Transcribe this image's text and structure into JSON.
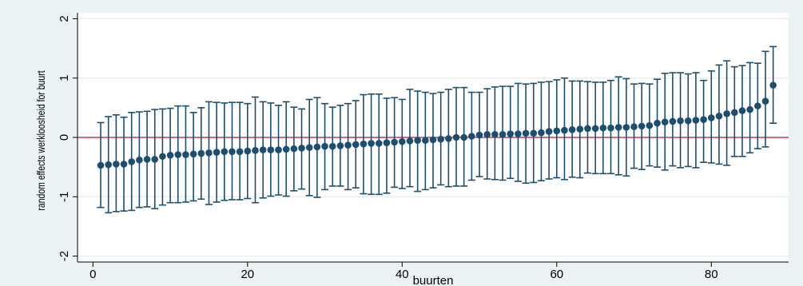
{
  "chart_data": {
    "type": "scatter",
    "subtype": "caterpillar-plot-with-error-bars",
    "title": "",
    "xlabel": "buurten",
    "ylabel": "random effects werkloosheid for buurt",
    "xlim": [
      -2,
      90
    ],
    "ylim": [
      -2.1,
      2.1
    ],
    "xticks": [
      0,
      20,
      40,
      60,
      80
    ],
    "yticks": [
      -2,
      -1,
      0,
      1,
      2
    ],
    "grid": "horizontal",
    "reference_line": {
      "y": 0,
      "color": "#c8102e"
    },
    "colors": {
      "background": "#eaf2f3",
      "plot_background": "#ffffff",
      "marker": "#1b4f72",
      "errorbar": "#1b4f72",
      "gridline": "#e3ecee",
      "reference": "#c8102e"
    },
    "series": [
      {
        "x": [
          1,
          2,
          3,
          4,
          5,
          6,
          7,
          8,
          9,
          10,
          11,
          12,
          13,
          14,
          15,
          16,
          17,
          18,
          19,
          20,
          21,
          22,
          23,
          24,
          25,
          26,
          27,
          28,
          29,
          30,
          31,
          32,
          33,
          34,
          35,
          36,
          37,
          38,
          39,
          40,
          41,
          42,
          43,
          44,
          45,
          46,
          47,
          48,
          49,
          50,
          51,
          52,
          53,
          54,
          55,
          56,
          57,
          58,
          59,
          60,
          61,
          62,
          63,
          64,
          65,
          66,
          67,
          68,
          69,
          70,
          71,
          72,
          73,
          74,
          75,
          76,
          77,
          78,
          79,
          80,
          81,
          82,
          83,
          84,
          85,
          86,
          87,
          88
        ],
        "y": [
          -0.47,
          -0.46,
          -0.45,
          -0.45,
          -0.41,
          -0.38,
          -0.37,
          -0.37,
          -0.32,
          -0.3,
          -0.29,
          -0.29,
          -0.28,
          -0.27,
          -0.26,
          -0.25,
          -0.24,
          -0.24,
          -0.24,
          -0.23,
          -0.22,
          -0.21,
          -0.21,
          -0.21,
          -0.2,
          -0.19,
          -0.18,
          -0.17,
          -0.16,
          -0.15,
          -0.15,
          -0.14,
          -0.13,
          -0.12,
          -0.11,
          -0.1,
          -0.1,
          -0.09,
          -0.08,
          -0.07,
          -0.06,
          -0.05,
          -0.05,
          -0.04,
          -0.03,
          -0.02,
          0.0,
          0.0,
          0.02,
          0.04,
          0.05,
          0.05,
          0.05,
          0.06,
          0.06,
          0.07,
          0.07,
          0.08,
          0.1,
          0.11,
          0.12,
          0.13,
          0.14,
          0.15,
          0.15,
          0.16,
          0.16,
          0.17,
          0.17,
          0.18,
          0.19,
          0.2,
          0.24,
          0.26,
          0.27,
          0.28,
          0.28,
          0.29,
          0.3,
          0.33,
          0.36,
          0.4,
          0.42,
          0.45,
          0.47,
          0.53,
          0.61,
          0.88
        ],
        "lower": [
          -1.18,
          -1.27,
          -1.25,
          -1.24,
          -1.23,
          -1.18,
          -1.17,
          -1.2,
          -1.14,
          -1.1,
          -1.1,
          -1.09,
          -1.07,
          -1.04,
          -1.13,
          -1.09,
          -1.06,
          -1.05,
          -1.05,
          -1.03,
          -1.1,
          -1.02,
          -0.99,
          -0.97,
          -0.99,
          -0.9,
          -0.87,
          -0.98,
          -1.01,
          -0.88,
          -0.82,
          -0.82,
          -0.88,
          -0.85,
          -0.95,
          -0.96,
          -0.96,
          -0.94,
          -0.84,
          -0.86,
          -0.83,
          -0.91,
          -0.88,
          -0.85,
          -0.8,
          -0.83,
          -0.82,
          -0.82,
          -0.72,
          -0.66,
          -0.7,
          -0.71,
          -0.72,
          -0.69,
          -0.74,
          -0.77,
          -0.76,
          -0.73,
          -0.7,
          -0.68,
          -0.71,
          -0.67,
          -0.68,
          -0.6,
          -0.61,
          -0.61,
          -0.61,
          -0.63,
          -0.65,
          -0.52,
          -0.54,
          -0.48,
          -0.5,
          -0.55,
          -0.48,
          -0.51,
          -0.49,
          -0.51,
          -0.42,
          -0.43,
          -0.45,
          -0.47,
          -0.32,
          -0.32,
          -0.26,
          -0.19,
          -0.16,
          0.24
        ],
        "upper": [
          0.25,
          0.35,
          0.38,
          0.34,
          0.42,
          0.43,
          0.44,
          0.47,
          0.48,
          0.49,
          0.53,
          0.53,
          0.42,
          0.5,
          0.6,
          0.59,
          0.58,
          0.59,
          0.59,
          0.57,
          0.68,
          0.6,
          0.58,
          0.54,
          0.6,
          0.51,
          0.48,
          0.64,
          0.67,
          0.57,
          0.51,
          0.54,
          0.57,
          0.62,
          0.72,
          0.73,
          0.73,
          0.66,
          0.67,
          0.64,
          0.81,
          0.78,
          0.76,
          0.74,
          0.76,
          0.81,
          0.84,
          0.84,
          0.76,
          0.76,
          0.82,
          0.85,
          0.86,
          0.86,
          0.91,
          0.9,
          0.91,
          0.93,
          0.94,
          0.97,
          1.0,
          0.95,
          0.95,
          0.94,
          0.93,
          0.93,
          0.96,
          1.02,
          0.99,
          0.9,
          0.91,
          0.9,
          0.98,
          1.08,
          1.09,
          1.09,
          1.07,
          1.09,
          0.96,
          1.12,
          1.22,
          1.29,
          1.19,
          1.21,
          1.26,
          1.25,
          1.45,
          1.53
        ]
      }
    ]
  }
}
